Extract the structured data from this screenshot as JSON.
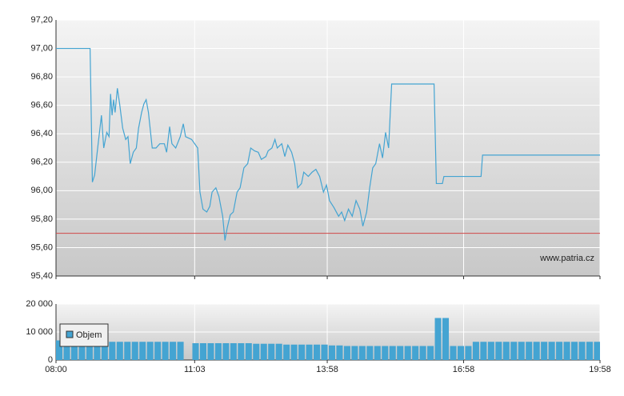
{
  "chart_data": [
    {
      "type": "line",
      "source": "www.patria.cz",
      "xlim": [
        "08:00",
        "19:58"
      ],
      "ylim": [
        95.4,
        97.2
      ],
      "yticks": [
        {
          "value": 95.4,
          "label": "95,40"
        },
        {
          "value": 95.6,
          "label": "95,60"
        },
        {
          "value": 95.8,
          "label": "95,80"
        },
        {
          "value": 96.0,
          "label": "96,00"
        },
        {
          "value": 96.2,
          "label": "96,20"
        },
        {
          "value": 96.4,
          "label": "96,40"
        },
        {
          "value": 96.6,
          "label": "96,60"
        },
        {
          "value": 96.8,
          "label": "96,80"
        },
        {
          "value": 97.0,
          "label": "97,00"
        },
        {
          "value": 97.2,
          "label": "97,20"
        }
      ],
      "grid": true,
      "color": "#44a4d2",
      "reference_line": {
        "value": 95.7,
        "color": "#d04848"
      },
      "x": [
        "08:00",
        "08:45",
        "08:48",
        "08:51",
        "08:55",
        "09:00",
        "09:03",
        "09:07",
        "09:10",
        "09:12",
        "09:14",
        "09:16",
        "09:18",
        "09:21",
        "09:24",
        "09:28",
        "09:32",
        "09:35",
        "09:38",
        "09:42",
        "09:46",
        "09:49",
        "09:53",
        "09:56",
        "09:59",
        "10:02",
        "10:07",
        "10:12",
        "10:17",
        "10:23",
        "10:26",
        "10:30",
        "10:33",
        "10:38",
        "10:44",
        "10:48",
        "10:51",
        "10:59",
        "11:07",
        "11:10",
        "11:14",
        "11:19",
        "11:23",
        "11:26",
        "11:31",
        "11:35",
        "11:40",
        "11:43",
        "11:46",
        "11:50",
        "11:54",
        "11:59",
        "12:03",
        "12:08",
        "12:13",
        "12:17",
        "12:22",
        "12:27",
        "12:31",
        "12:37",
        "12:40",
        "12:45",
        "12:49",
        "12:52",
        "12:58",
        "13:02",
        "13:06",
        "13:11",
        "13:15",
        "13:19",
        "13:24",
        "13:27",
        "13:33",
        "13:38",
        "13:43",
        "13:48",
        "13:53",
        "13:57",
        "14:01",
        "14:07",
        "14:13",
        "14:17",
        "14:21",
        "14:26",
        "14:31",
        "14:36",
        "14:41",
        "14:45",
        "14:50",
        "14:54",
        "14:58",
        "15:02",
        "15:07",
        "15:11",
        "15:15",
        "15:19",
        "15:23",
        "16:19",
        "16:22",
        "16:30",
        "16:32",
        "17:21",
        "17:23",
        "19:58"
      ],
      "values": [
        97.0,
        97.0,
        96.06,
        96.11,
        96.3,
        96.53,
        96.3,
        96.41,
        96.38,
        96.68,
        96.53,
        96.64,
        96.55,
        96.72,
        96.61,
        96.44,
        96.36,
        96.38,
        96.19,
        96.27,
        96.3,
        96.44,
        96.55,
        96.61,
        96.64,
        96.55,
        96.3,
        96.3,
        96.33,
        96.33,
        96.27,
        96.45,
        96.33,
        96.3,
        96.38,
        96.47,
        96.38,
        96.36,
        96.3,
        95.99,
        95.87,
        95.85,
        95.89,
        95.99,
        96.02,
        95.96,
        95.82,
        95.65,
        95.74,
        95.83,
        95.85,
        95.99,
        96.02,
        96.16,
        96.19,
        96.3,
        96.28,
        96.27,
        96.22,
        96.24,
        96.28,
        96.3,
        96.36,
        96.3,
        96.33,
        96.24,
        96.32,
        96.27,
        96.19,
        96.02,
        96.05,
        96.13,
        96.1,
        96.13,
        96.15,
        96.1,
        95.99,
        96.04,
        95.93,
        95.88,
        95.82,
        95.85,
        95.79,
        95.87,
        95.82,
        95.93,
        95.87,
        95.75,
        95.85,
        96.02,
        96.16,
        96.19,
        96.33,
        96.23,
        96.41,
        96.3,
        96.75,
        96.75,
        96.05,
        96.05,
        96.1,
        96.1,
        96.25,
        96.25
      ]
    },
    {
      "type": "bar",
      "xlim": [
        "08:00",
        "19:58"
      ],
      "xticks": [
        "08:00",
        "11:03",
        "13:58",
        "16:58",
        "19:58"
      ],
      "ylim": [
        0,
        20000
      ],
      "yticks": [
        0,
        {
          "value": 10000,
          "label": "10 000"
        },
        {
          "value": 20000,
          "label": "20 000"
        }
      ],
      "grid": true,
      "legend": "upper-left",
      "x": [
        "08:00",
        "08:10",
        "08:20",
        "08:30",
        "08:40",
        "08:50",
        "09:00",
        "09:10",
        "09:20",
        "09:30",
        "09:40",
        "09:50",
        "10:00",
        "10:10",
        "10:20",
        "10:30",
        "10:40",
        "10:50",
        "11:00",
        "11:10",
        "11:20",
        "11:30",
        "11:40",
        "11:50",
        "12:00",
        "12:10",
        "12:20",
        "12:30",
        "12:40",
        "12:50",
        "13:00",
        "13:10",
        "13:20",
        "13:30",
        "13:40",
        "13:50",
        "14:00",
        "14:10",
        "14:20",
        "14:30",
        "14:40",
        "14:50",
        "15:00",
        "15:10",
        "15:20",
        "15:30",
        "15:40",
        "15:50",
        "16:00",
        "16:10",
        "16:20",
        "16:30",
        "16:40",
        "16:50",
        "17:00",
        "17:10",
        "17:20",
        "17:30",
        "17:40",
        "17:50",
        "18:00",
        "18:10",
        "18:20",
        "18:30",
        "18:40",
        "18:50",
        "19:00",
        "19:10",
        "19:20",
        "19:30",
        "19:40",
        "19:50"
      ],
      "series": [
        {
          "name": "Objem",
          "color": "#44a4d2",
          "values": [
            7000,
            6500,
            6500,
            6500,
            6500,
            6500,
            6500,
            6500,
            6500,
            6500,
            6500,
            6500,
            6500,
            6500,
            6500,
            6500,
            6500,
            null,
            6000,
            6000,
            6000,
            6000,
            6000,
            6000,
            6000,
            6000,
            5800,
            5800,
            5800,
            5800,
            5500,
            5500,
            5500,
            5500,
            5500,
            5500,
            5200,
            5200,
            5000,
            5000,
            5000,
            5000,
            5000,
            5000,
            5000,
            5000,
            5000,
            5000,
            5000,
            5000,
            15000,
            15000,
            5000,
            5000,
            5000,
            6500,
            6500,
            6500,
            6500,
            6500,
            6500,
            6500,
            6500,
            6500,
            6500,
            6500,
            6500,
            6500,
            6500,
            6500,
            6500,
            6500
          ]
        }
      ]
    }
  ]
}
